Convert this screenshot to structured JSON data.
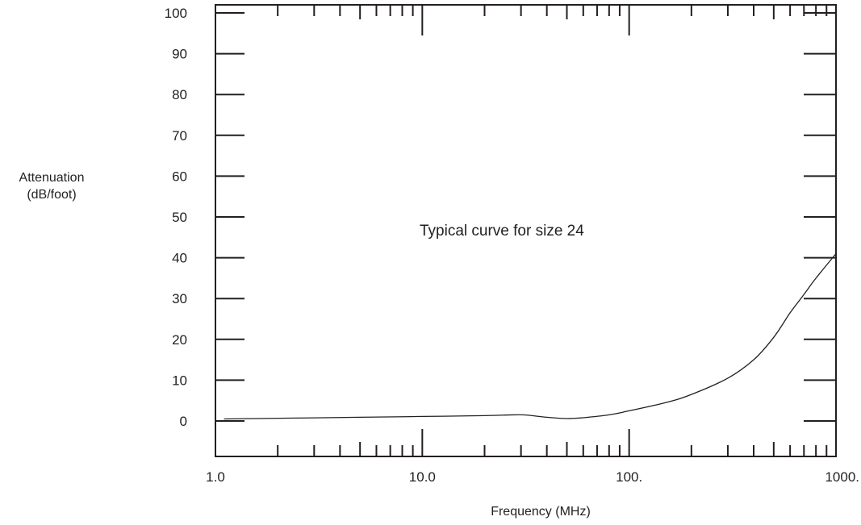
{
  "chart_data": {
    "type": "line",
    "title": "",
    "xlabel": "Frequency (MHz)",
    "ylabel": [
      "Attenuation",
      "(dB/foot)"
    ],
    "annotation": "Typical curve for size 24",
    "x_scale": "log",
    "xlim": [
      1.0,
      1000.0
    ],
    "ylim": [
      -8,
      100
    ],
    "x_ticks": [
      1.0,
      10.0,
      100.0,
      1000.0
    ],
    "x_tick_labels": [
      "1.0",
      "10.0",
      "100.",
      "1000."
    ],
    "y_ticks": [
      0,
      10,
      20,
      30,
      40,
      50,
      60,
      70,
      80,
      90,
      100
    ],
    "y_tick_labels": [
      "0",
      "10",
      "20",
      "30",
      "40",
      "50",
      "60",
      "70",
      "80",
      "90",
      "100"
    ],
    "grid": false,
    "series": [
      {
        "x": [
          1.1,
          5,
          10,
          20,
          30,
          40,
          50,
          60,
          80,
          100,
          150,
          200,
          300,
          400,
          500,
          600,
          700,
          800,
          1000
        ],
        "y": [
          0.5,
          0.9,
          1.1,
          1.3,
          1.5,
          0.9,
          0.6,
          0.8,
          1.5,
          2.5,
          4.5,
          6.5,
          10.5,
          15,
          20.5,
          26.5,
          31,
          35,
          41
        ]
      }
    ]
  }
}
